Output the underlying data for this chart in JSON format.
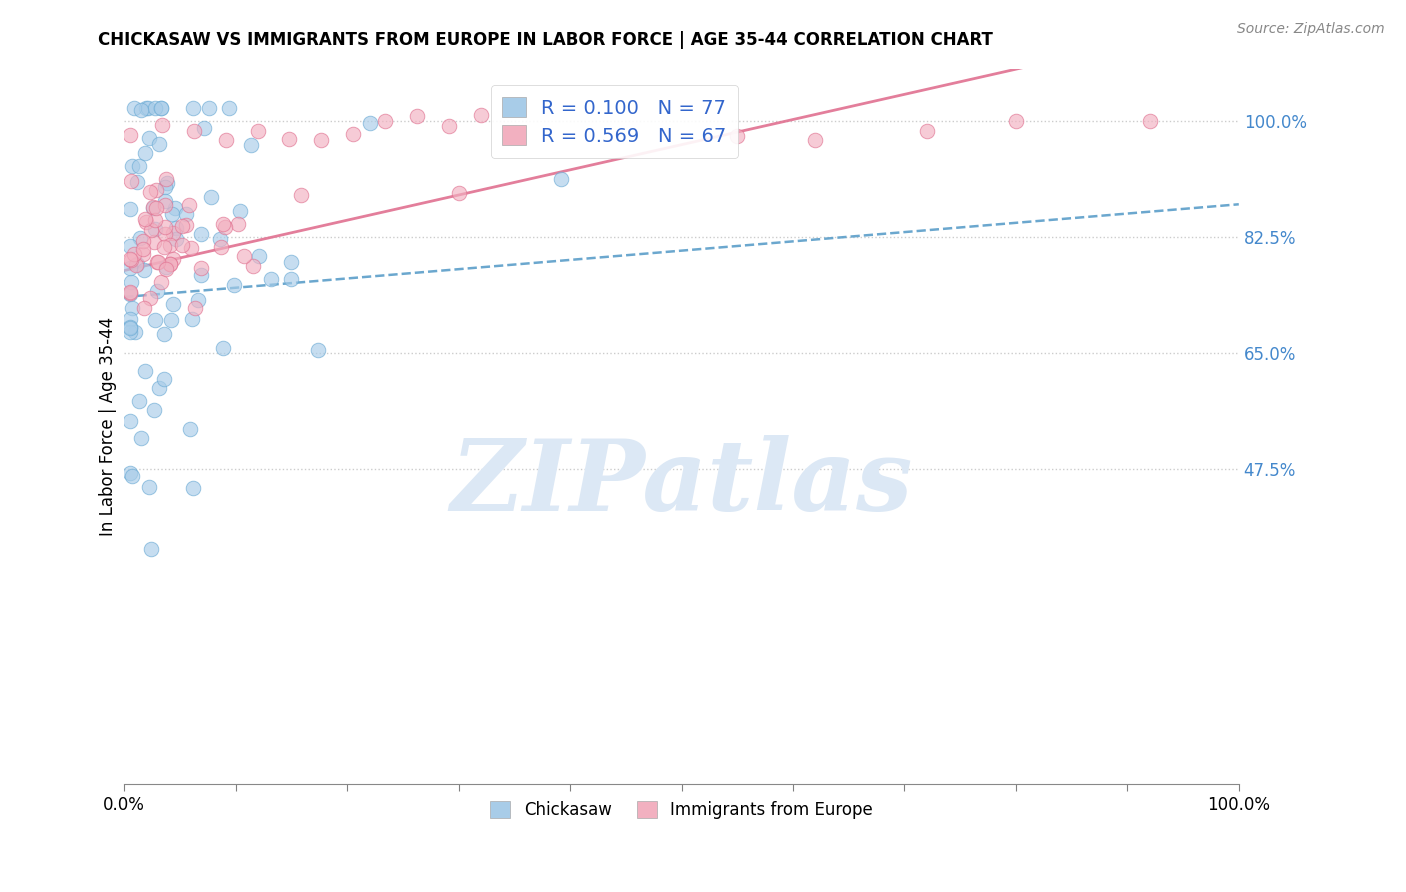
{
  "title": "CHICKASAW VS IMMIGRANTS FROM EUROPE IN LABOR FORCE | AGE 35-44 CORRELATION CHART",
  "source": "Source: ZipAtlas.com",
  "ylabel": "In Labor Force | Age 35-44",
  "xlim": [
    0,
    1.0
  ],
  "ylim": [
    0.0,
    1.08
  ],
  "ytick_positions": [
    0.475,
    0.65,
    0.825,
    1.0
  ],
  "ytick_labels": [
    "47.5%",
    "65.0%",
    "82.5%",
    "100.0%"
  ],
  "R_chickasaw": 0.1,
  "N_chickasaw": 77,
  "R_europe": 0.569,
  "N_europe": 67,
  "chickasaw_color": "#a8cce8",
  "europe_color": "#f2b0c0",
  "chickasaw_edge": "#6aaad4",
  "europe_edge": "#e07090",
  "chickasaw_line_color": "#5b9ec9",
  "europe_line_color": "#e07090",
  "watermark_text": "ZIPatlas",
  "watermark_color": "#dce8f5",
  "legend_label_chickasaw": "Chickasaw",
  "legend_label_europe": "Immigrants from Europe",
  "title_fontsize": 12,
  "source_fontsize": 10
}
